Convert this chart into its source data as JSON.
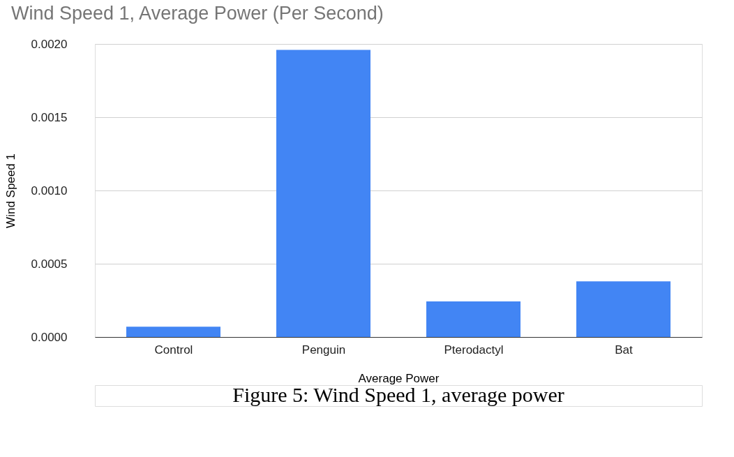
{
  "chart_data": {
    "type": "bar",
    "title": "Wind Speed 1, Average Power (Per Second)",
    "xlabel": "Average Power",
    "ylabel": "Wind Speed 1",
    "categories": [
      "Control",
      "Penguin",
      "Pterodactyl",
      "Bat"
    ],
    "values": [
      7e-05,
      0.00196,
      0.000243,
      0.00038
    ],
    "color": "#4285f4",
    "ylim": [
      0,
      0.002
    ],
    "yticks": [
      {
        "value": 0,
        "label": "0.0000"
      },
      {
        "value": 0.0005,
        "label": "0.0005"
      },
      {
        "value": 0.001,
        "label": "0.0010"
      },
      {
        "value": 0.0015,
        "label": "0.0015"
      },
      {
        "value": 0.002,
        "label": "0.0020"
      }
    ],
    "grid": "y",
    "annotations": [
      "Figure 5: Wind Speed 1, average power"
    ]
  }
}
